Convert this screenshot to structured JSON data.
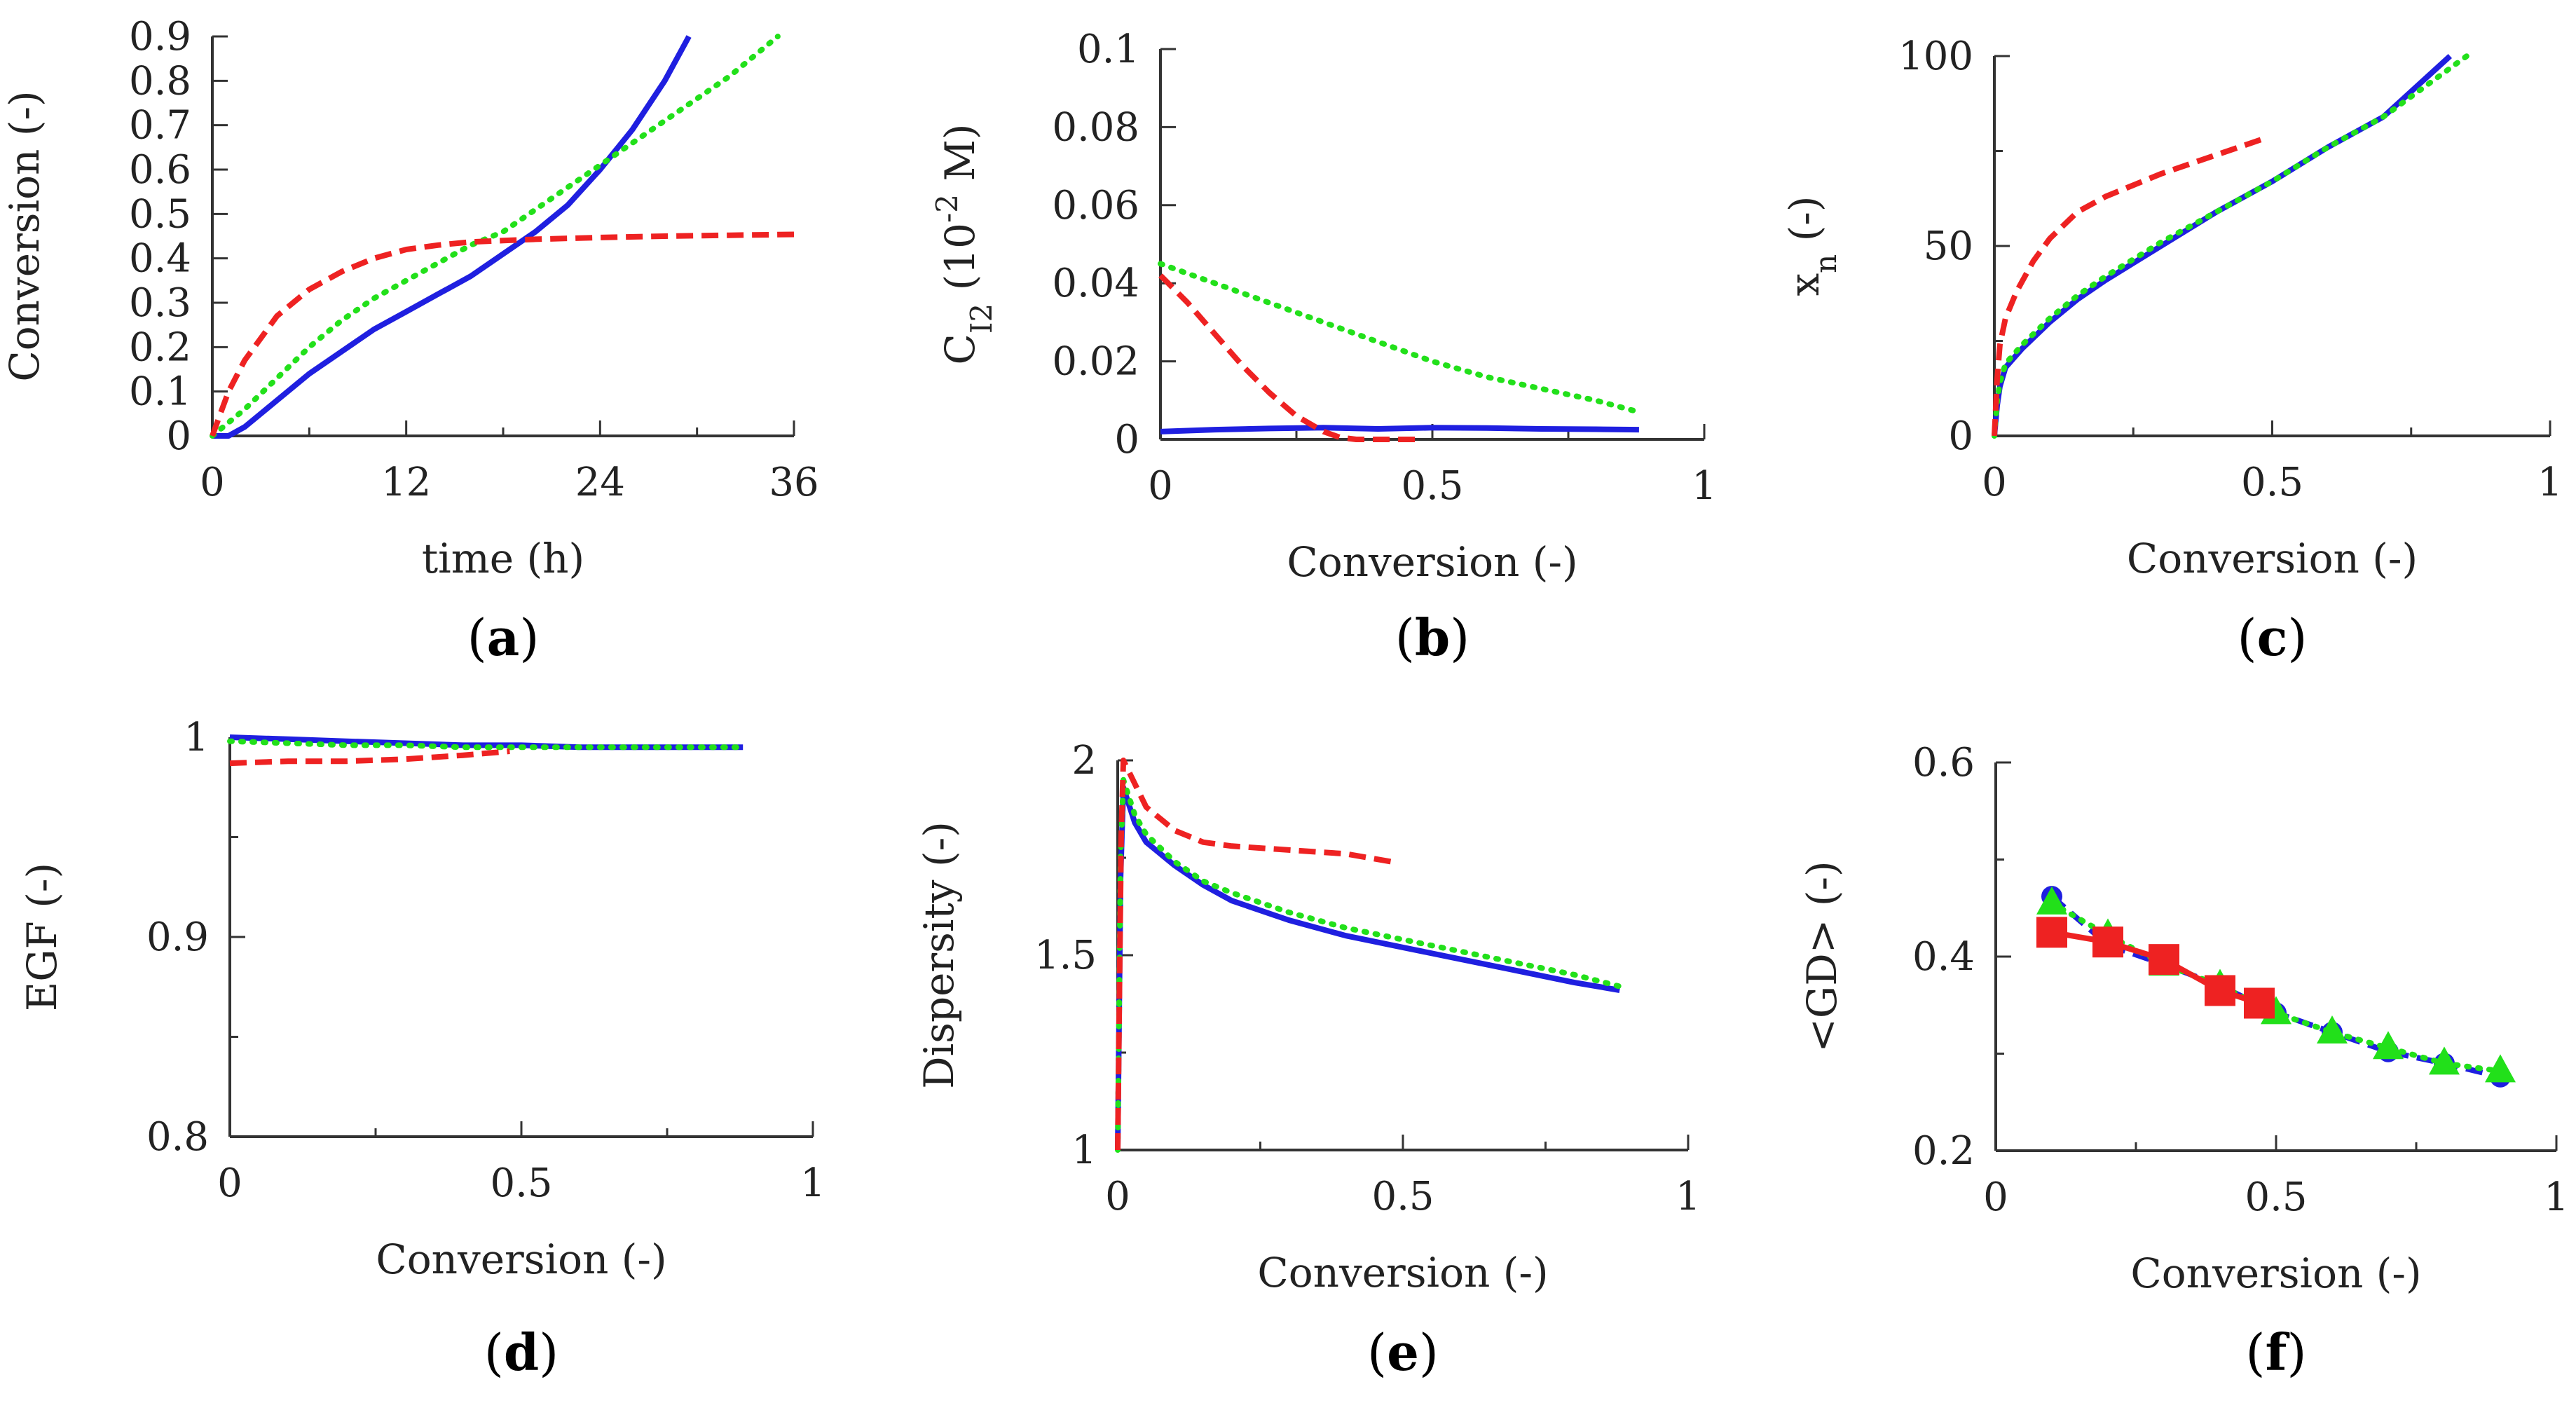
{
  "colors": {
    "blue": "#1f1fe0",
    "green": "#22e01a",
    "red": "#ee2222",
    "axis": "#333333"
  },
  "chart_data": [
    {
      "panel": "(a)",
      "panel_letter": "a",
      "type": "line",
      "xlabel": "time (h)",
      "ylabel": "Conversion (-)",
      "xlim": [
        0,
        36
      ],
      "ylim": [
        0,
        0.9
      ],
      "xticks": [
        0,
        12,
        24,
        36
      ],
      "yticks": [
        0,
        0.1,
        0.2,
        0.3,
        0.4,
        0.5,
        0.6,
        0.7,
        0.8,
        0.9
      ],
      "series": [
        {
          "color": "blue",
          "style": "solid",
          "x": [
            0,
            1,
            2,
            3,
            4,
            6,
            8,
            10,
            12,
            14,
            16,
            18,
            20,
            22,
            24,
            26,
            28,
            29.5
          ],
          "y": [
            0,
            0,
            0.02,
            0.05,
            0.08,
            0.14,
            0.19,
            0.24,
            0.28,
            0.32,
            0.36,
            0.41,
            0.46,
            0.52,
            0.6,
            0.69,
            0.8,
            0.9
          ]
        },
        {
          "color": "green",
          "style": "dotted",
          "x": [
            0,
            2,
            4,
            6,
            8,
            10,
            12,
            14,
            16,
            18,
            20,
            22,
            24,
            26,
            28,
            30,
            32,
            34,
            35
          ],
          "y": [
            0,
            0.06,
            0.13,
            0.2,
            0.26,
            0.31,
            0.35,
            0.39,
            0.43,
            0.46,
            0.51,
            0.56,
            0.61,
            0.66,
            0.71,
            0.76,
            0.81,
            0.87,
            0.9
          ]
        },
        {
          "color": "red",
          "style": "dashed",
          "x": [
            0,
            0.5,
            1,
            2,
            3,
            4,
            6,
            8,
            10,
            12,
            14,
            16,
            18,
            20,
            24,
            28,
            32,
            36
          ],
          "y": [
            0,
            0.05,
            0.1,
            0.17,
            0.22,
            0.27,
            0.33,
            0.37,
            0.4,
            0.42,
            0.43,
            0.437,
            0.44,
            0.443,
            0.447,
            0.45,
            0.452,
            0.454
          ]
        }
      ]
    },
    {
      "panel": "(b)",
      "panel_letter": "b",
      "type": "line",
      "xlabel": "Conversion (-)",
      "ylabel_main": "C",
      "ylabel_sub": "I2",
      "ylabel_mid": " (10",
      "ylabel_sup": "-2",
      "ylabel_end": " M)",
      "xlim": [
        0,
        1
      ],
      "ylim": [
        0,
        0.1
      ],
      "xticks": [
        0,
        0.5,
        1
      ],
      "yticks": [
        0,
        0.02,
        0.04,
        0.06,
        0.08,
        0.1
      ],
      "series": [
        {
          "color": "blue",
          "style": "solid",
          "x": [
            0,
            0.1,
            0.2,
            0.3,
            0.4,
            0.5,
            0.6,
            0.7,
            0.8,
            0.88
          ],
          "y": [
            0.002,
            0.0025,
            0.0028,
            0.003,
            0.0027,
            0.003,
            0.0029,
            0.0027,
            0.0026,
            0.0025
          ]
        },
        {
          "color": "green",
          "style": "dotted",
          "x": [
            0,
            0.1,
            0.2,
            0.3,
            0.4,
            0.5,
            0.6,
            0.7,
            0.8,
            0.88
          ],
          "y": [
            0.045,
            0.04,
            0.035,
            0.03,
            0.025,
            0.02,
            0.016,
            0.013,
            0.01,
            0.007
          ]
        },
        {
          "color": "red",
          "style": "dashed",
          "x": [
            0,
            0.05,
            0.1,
            0.15,
            0.2,
            0.25,
            0.3,
            0.33,
            0.36,
            0.4,
            0.45,
            0.48
          ],
          "y": [
            0.042,
            0.035,
            0.027,
            0.019,
            0.012,
            0.006,
            0.002,
            0.0005,
            0,
            0,
            0,
            0
          ]
        }
      ]
    },
    {
      "panel": "(c)",
      "panel_letter": "c",
      "type": "line",
      "xlabel": "Conversion (-)",
      "ylabel_main": "x",
      "ylabel_sub": "n",
      "ylabel_end": " (-)",
      "xlim": [
        0,
        1
      ],
      "ylim": [
        0,
        100
      ],
      "xticks": [
        0,
        0.5,
        1
      ],
      "yticks": [
        0,
        50,
        100
      ],
      "series": [
        {
          "color": "blue",
          "style": "solid",
          "x": [
            0,
            0.005,
            0.01,
            0.02,
            0.05,
            0.1,
            0.15,
            0.2,
            0.3,
            0.4,
            0.5,
            0.6,
            0.7,
            0.82
          ],
          "y": [
            0,
            8,
            13,
            18,
            23,
            30,
            36,
            41,
            50,
            59,
            67,
            76,
            84,
            100
          ]
        },
        {
          "color": "green",
          "style": "dotted",
          "x": [
            0,
            0.005,
            0.01,
            0.02,
            0.05,
            0.1,
            0.15,
            0.2,
            0.3,
            0.4,
            0.5,
            0.6,
            0.7,
            0.85
          ],
          "y": [
            0,
            9,
            14,
            19,
            24,
            31,
            37,
            42,
            51,
            59,
            67,
            76,
            84,
            100
          ]
        },
        {
          "color": "red",
          "style": "dashed",
          "x": [
            0,
            0.005,
            0.01,
            0.02,
            0.04,
            0.07,
            0.1,
            0.15,
            0.2,
            0.3,
            0.4,
            0.48
          ],
          "y": [
            0,
            15,
            24,
            31,
            38,
            46,
            52,
            59,
            63,
            69,
            74,
            78
          ]
        }
      ]
    },
    {
      "panel": "(d)",
      "panel_letter": "d",
      "type": "line",
      "xlabel": "Conversion (-)",
      "ylabel": "EGF (-)",
      "xlim": [
        0,
        1
      ],
      "ylim": [
        0.8,
        1
      ],
      "xticks": [
        0,
        0.5,
        1
      ],
      "yticks": [
        0.8,
        0.9,
        1
      ],
      "series": [
        {
          "color": "blue",
          "style": "solid",
          "x": [
            0,
            0.1,
            0.2,
            0.3,
            0.4,
            0.5,
            0.6,
            0.7,
            0.8,
            0.88
          ],
          "y": [
            1,
            0.999,
            0.998,
            0.997,
            0.996,
            0.996,
            0.995,
            0.995,
            0.995,
            0.995
          ]
        },
        {
          "color": "green",
          "style": "dotted",
          "x": [
            0,
            0.1,
            0.2,
            0.3,
            0.4,
            0.5,
            0.6,
            0.7,
            0.8,
            0.88
          ],
          "y": [
            0.998,
            0.997,
            0.996,
            0.996,
            0.995,
            0.995,
            0.995,
            0.995,
            0.995,
            0.995
          ]
        },
        {
          "color": "red",
          "style": "dashed",
          "x": [
            0,
            0.1,
            0.2,
            0.3,
            0.4,
            0.48
          ],
          "y": [
            0.987,
            0.988,
            0.988,
            0.989,
            0.991,
            0.993
          ]
        }
      ]
    },
    {
      "panel": "(e)",
      "panel_letter": "e",
      "type": "line",
      "xlabel": "Conversion (-)",
      "ylabel": "Dispersity (-)",
      "xlim": [
        0,
        1
      ],
      "ylim": [
        1,
        2
      ],
      "xticks": [
        0,
        0.5,
        1
      ],
      "yticks": [
        1,
        1.5,
        2
      ],
      "series": [
        {
          "color": "blue",
          "style": "solid",
          "x": [
            0,
            0.005,
            0.01,
            0.03,
            0.05,
            0.1,
            0.15,
            0.2,
            0.3,
            0.4,
            0.5,
            0.6,
            0.7,
            0.8,
            0.88
          ],
          "y": [
            1,
            1.7,
            1.93,
            1.84,
            1.79,
            1.73,
            1.68,
            1.64,
            1.59,
            1.55,
            1.52,
            1.49,
            1.46,
            1.43,
            1.41
          ]
        },
        {
          "color": "green",
          "style": "dotted",
          "x": [
            0,
            0.005,
            0.01,
            0.03,
            0.05,
            0.1,
            0.15,
            0.2,
            0.3,
            0.4,
            0.5,
            0.6,
            0.7,
            0.8,
            0.88
          ],
          "y": [
            1,
            1.75,
            1.95,
            1.86,
            1.81,
            1.74,
            1.69,
            1.66,
            1.61,
            1.57,
            1.54,
            1.51,
            1.48,
            1.45,
            1.42
          ]
        },
        {
          "color": "red",
          "style": "dashed",
          "x": [
            0,
            0.003,
            0.006,
            0.01,
            0.03,
            0.05,
            0.1,
            0.15,
            0.2,
            0.3,
            0.4,
            0.48
          ],
          "y": [
            1,
            1.4,
            1.8,
            2,
            1.94,
            1.88,
            1.82,
            1.79,
            1.78,
            1.77,
            1.76,
            1.74
          ]
        }
      ]
    },
    {
      "panel": "(f)",
      "panel_letter": "f",
      "type": "line",
      "xlabel": "Conversion (-)",
      "ylabel": "<GD> (-)",
      "xlim": [
        0,
        1
      ],
      "ylim": [
        0.2,
        0.6
      ],
      "xticks": [
        0,
        0.5,
        1
      ],
      "yticks": [
        0.2,
        0.4,
        0.6
      ],
      "series": [
        {
          "color": "blue",
          "style": "dashed",
          "marker": "circle",
          "x": [
            0.1,
            0.2,
            0.3,
            0.4,
            0.5,
            0.6,
            0.7,
            0.8,
            0.9
          ],
          "y": [
            0.462,
            0.412,
            0.392,
            0.37,
            0.342,
            0.322,
            0.302,
            0.29,
            0.276
          ]
        },
        {
          "color": "green",
          "style": "dotted",
          "marker": "triangle",
          "x": [
            0.1,
            0.2,
            0.3,
            0.4,
            0.5,
            0.6,
            0.7,
            0.8,
            0.9
          ],
          "y": [
            0.455,
            0.422,
            0.392,
            0.37,
            0.342,
            0.322,
            0.306,
            0.29,
            0.282
          ]
        },
        {
          "color": "red",
          "style": "solid",
          "marker": "square",
          "x": [
            0.1,
            0.2,
            0.3,
            0.4,
            0.47
          ],
          "y": [
            0.425,
            0.415,
            0.397,
            0.365,
            0.352
          ]
        }
      ]
    }
  ]
}
